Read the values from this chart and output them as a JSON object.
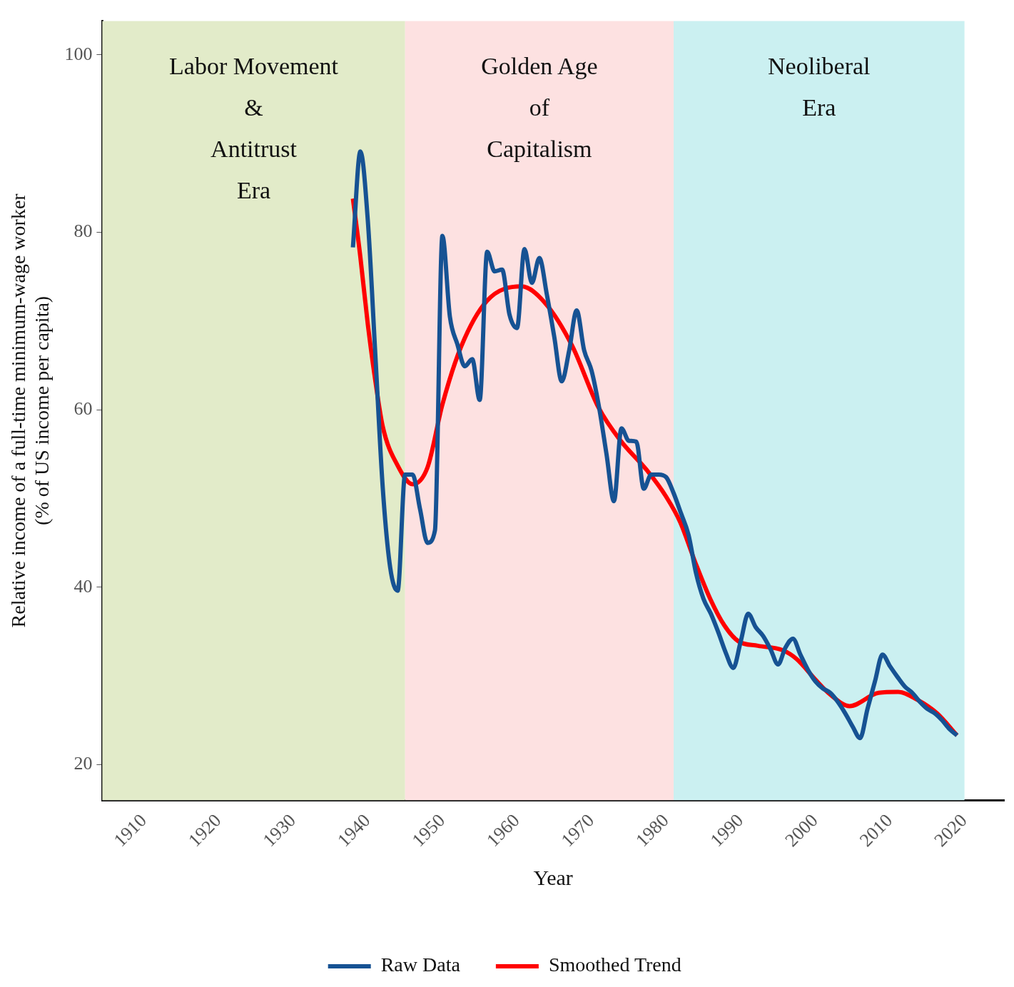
{
  "chart_data": {
    "type": "line",
    "xlabel": "Year",
    "ylabel": "Relative income of a full-time minimum-wage worker\n(% of US income per capita)",
    "xlim": [
      1904.4,
      2025.3
    ],
    "xticks": [
      1910,
      1920,
      1930,
      1940,
      1950,
      1960,
      1970,
      1980,
      1990,
      2000,
      2010,
      2020
    ],
    "ylim": [
      16,
      103.8
    ],
    "yticks": [
      20,
      40,
      60,
      80,
      100
    ],
    "grid": false,
    "legend": "bottom",
    "bands": [
      {
        "axis": "x",
        "from": 1904.4,
        "to": 1945,
        "label": "Labor Movement\n&\nAntitrust\nEra",
        "color": "#e2ebc9"
      },
      {
        "axis": "x",
        "from": 1945,
        "to": 1981,
        "label": "Golden Age\nof\nCapitalism",
        "color": "#fde1e1"
      },
      {
        "axis": "x",
        "from": 1981,
        "to": 2020,
        "label": "Neoliberal\nEra",
        "color": "#cbf0f1"
      }
    ],
    "series": [
      {
        "name": "Raw Data",
        "color": "#165293",
        "type": "line",
        "x": [
          1938,
          1939,
          1940,
          1941,
          1942,
          1943,
          1944,
          1945,
          1946,
          1947,
          1948,
          1949,
          1950,
          1951,
          1952,
          1953,
          1954,
          1955,
          1956,
          1957,
          1958,
          1959,
          1960,
          1961,
          1962,
          1963,
          1964,
          1965,
          1966,
          1967,
          1968,
          1969,
          1970,
          1971,
          1972,
          1973,
          1974,
          1975,
          1976,
          1977,
          1978,
          1979,
          1980,
          1981,
          1982,
          1983,
          1984,
          1985,
          1986,
          1987,
          1988,
          1989,
          1990,
          1991,
          1992,
          1993,
          1994,
          1995,
          1996,
          1997,
          1998,
          1999,
          2000,
          2001,
          2002,
          2003,
          2004,
          2005,
          2006,
          2007,
          2008,
          2009,
          2010,
          2011,
          2012,
          2013,
          2014,
          2015,
          2016,
          2017,
          2018,
          2019
        ],
        "values": [
          78.3,
          89.1,
          81.3,
          66.3,
          51.2,
          42.2,
          39.6,
          52.7,
          52.7,
          48.8,
          45.0,
          46.4,
          79.6,
          70.5,
          67.4,
          64.9,
          65.7,
          61.1,
          77.8,
          75.6,
          75.8,
          70.7,
          69.2,
          78.1,
          74.3,
          77.1,
          73.0,
          68.2,
          63.2,
          66.7,
          71.2,
          66.7,
          64.4,
          60.3,
          55.0,
          49.7,
          57.9,
          56.5,
          56.4,
          51.1,
          52.7,
          52.7,
          52.4,
          50.6,
          48.3,
          45.9,
          41.6,
          38.7,
          37.0,
          34.9,
          32.6,
          30.9,
          33.9,
          37.0,
          35.5,
          34.5,
          33.0,
          31.3,
          33.2,
          34.2,
          32.4,
          30.7,
          29.4,
          28.6,
          28.1,
          27.1,
          25.8,
          24.3,
          23.0,
          26.3,
          29.4,
          32.4,
          31.1,
          29.9,
          28.8,
          28.1,
          27.1,
          26.3,
          25.8,
          25.0,
          24.0,
          23.3
        ]
      },
      {
        "name": "Smoothed Trend",
        "color": "#ff0000",
        "type": "line",
        "x": [
          1938,
          1939,
          1940,
          1941,
          1942,
          1944,
          1946,
          1948,
          1950,
          1952.5,
          1956,
          1960.6,
          1963.8,
          1967.4,
          1970.9,
          1973.9,
          1977.4,
          1980,
          1981.9,
          1983.9,
          1985.9,
          1987.8,
          1989.7,
          1992.3,
          1995.6,
          1997.5,
          2000,
          2002,
          2004.6,
          2008.5,
          2011.1,
          2013.7,
          2016.3,
          2019
        ],
        "values": [
          83.8,
          77.2,
          69.6,
          63.3,
          58.1,
          53.7,
          51.6,
          53.5,
          60.6,
          67.1,
          72.3,
          73.9,
          72.0,
          67.2,
          60.3,
          56.5,
          53.2,
          50.2,
          47.3,
          42.8,
          38.7,
          35.7,
          33.9,
          33.4,
          32.9,
          31.9,
          29.6,
          27.9,
          26.6,
          28.1,
          28.2,
          27.3,
          25.8,
          23.3
        ]
      }
    ]
  }
}
